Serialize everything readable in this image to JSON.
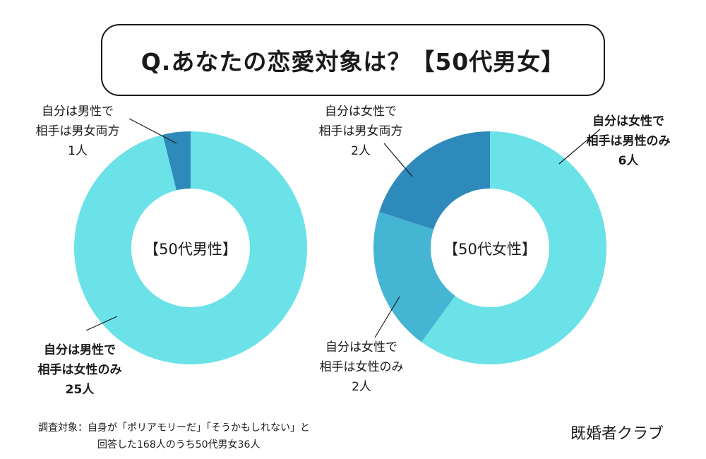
{
  "title": "Q.あなたの恋愛対象は？【50代男女】",
  "colors": {
    "light": "#6ae2e8",
    "mid": "#45b5d4",
    "dark": "#2d8abb"
  },
  "chart_data": [
    {
      "type": "pie",
      "center_label": "【50代男性】",
      "slices": [
        {
          "label_lines": [
            "自分は男性で",
            "相手は女性のみ",
            "25人"
          ],
          "value": 25,
          "color": "#6ae2e8",
          "bold": true
        },
        {
          "label_lines": [
            "自分は男性で",
            "相手は男女両方",
            "1人"
          ],
          "value": 1,
          "color": "#2d8abb",
          "bold": false
        }
      ]
    },
    {
      "type": "pie",
      "center_label": "【50代女性】",
      "slices": [
        {
          "label_lines": [
            "自分は女性で",
            "相手は男性のみ",
            "6人"
          ],
          "value": 6,
          "color": "#6ae2e8",
          "bold": true
        },
        {
          "label_lines": [
            "自分は女性で",
            "相手は女性のみ",
            "2人"
          ],
          "value": 2,
          "color": "#45b5d4",
          "bold": false
        },
        {
          "label_lines": [
            "自分は女性で",
            "相手は男女両方",
            "2人"
          ],
          "value": 2,
          "color": "#2d8abb",
          "bold": false
        }
      ]
    }
  ],
  "footnote": {
    "line1": "調査対象：自身が「ポリアモリーだ」「そうかもしれない」と",
    "line2": "回答した168人のうち50代男女36人"
  },
  "brand": "既婚者クラブ"
}
